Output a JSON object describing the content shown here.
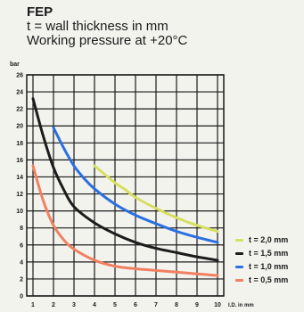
{
  "header": {
    "title": "FEP",
    "line1": "t = wall thickness in mm",
    "line2": "Working pressure at +20°C"
  },
  "chart_data": {
    "type": "line",
    "title": "FEP",
    "ylabel": "bar",
    "xlabel": "I.D. in mm",
    "xlim": [
      1,
      10
    ],
    "ylim": [
      0,
      26
    ],
    "x_ticks": [
      "1",
      "2",
      "3",
      "4",
      "5",
      "6",
      "7",
      "8",
      "9",
      "10"
    ],
    "y_ticks": [
      "0",
      "2",
      "4",
      "6",
      "8",
      "10",
      "12",
      "14",
      "16",
      "18",
      "20",
      "22",
      "24",
      "26"
    ],
    "grid": true,
    "legend_position": "bottom-right",
    "series": [
      {
        "name": "t = 2,0 mm",
        "color": "#d6e060",
        "x": [
          4,
          4.5,
          5,
          5.5,
          6,
          7,
          8,
          9,
          10
        ],
        "y": [
          15.3,
          14.3,
          13.3,
          12.5,
          11.6,
          10.3,
          9.2,
          8.3,
          7.6
        ]
      },
      {
        "name": "t = 1,5 mm",
        "color": "#1c1c1c",
        "x": [
          1,
          1.5,
          2,
          2.5,
          3,
          4,
          5,
          6,
          7,
          8,
          9,
          10
        ],
        "y": [
          23.2,
          18.8,
          15.1,
          12.5,
          10.5,
          8.6,
          7.3,
          6.3,
          5.6,
          5.1,
          4.6,
          4.2
        ]
      },
      {
        "name": "t = 1,0 mm",
        "color": "#2b6fe0",
        "x": [
          2,
          2.5,
          3,
          3.5,
          4,
          5,
          6,
          7,
          8,
          9,
          10
        ],
        "y": [
          19.8,
          17.4,
          15.3,
          13.8,
          12.6,
          10.8,
          9.5,
          8.5,
          7.6,
          6.9,
          6.3
        ]
      },
      {
        "name": "t = 0,5 mm",
        "color": "#f08060",
        "x": [
          1,
          1.5,
          2,
          2.5,
          3,
          4,
          5,
          6,
          7,
          8,
          9,
          10
        ],
        "y": [
          15.3,
          11.2,
          8.3,
          6.6,
          5.5,
          4.2,
          3.5,
          3.2,
          3.0,
          2.8,
          2.6,
          2.4
        ]
      }
    ]
  }
}
